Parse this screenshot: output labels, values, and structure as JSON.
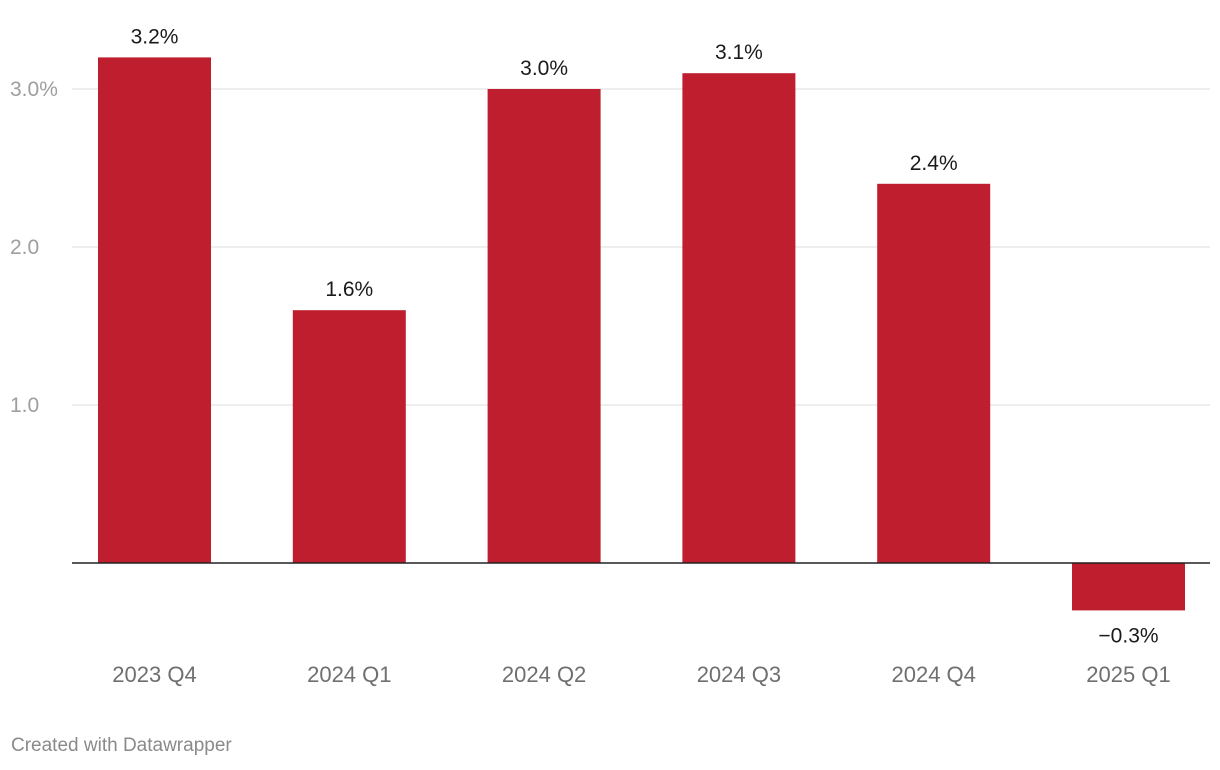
{
  "chart_data": {
    "type": "bar",
    "categories": [
      "2023 Q4",
      "2024 Q1",
      "2024 Q2",
      "2024 Q3",
      "2024 Q4",
      "2025 Q1"
    ],
    "values": [
      3.2,
      1.6,
      3.0,
      3.1,
      2.4,
      -0.3
    ],
    "value_labels": [
      "3.2%",
      "1.6%",
      "3.0%",
      "3.1%",
      "2.4%",
      "−0.3%"
    ],
    "y_ticks": [
      {
        "value": 1.0,
        "label": "1.0"
      },
      {
        "value": 2.0,
        "label": "2.0"
      },
      {
        "value": 3.0,
        "label": "3.0%"
      }
    ],
    "ylim": [
      -0.6,
      3.5
    ],
    "grid": true,
    "bar_color": "#be1e2d",
    "title": "",
    "xlabel": "",
    "ylabel": ""
  },
  "footer": {
    "credit": "Created with Datawrapper"
  }
}
